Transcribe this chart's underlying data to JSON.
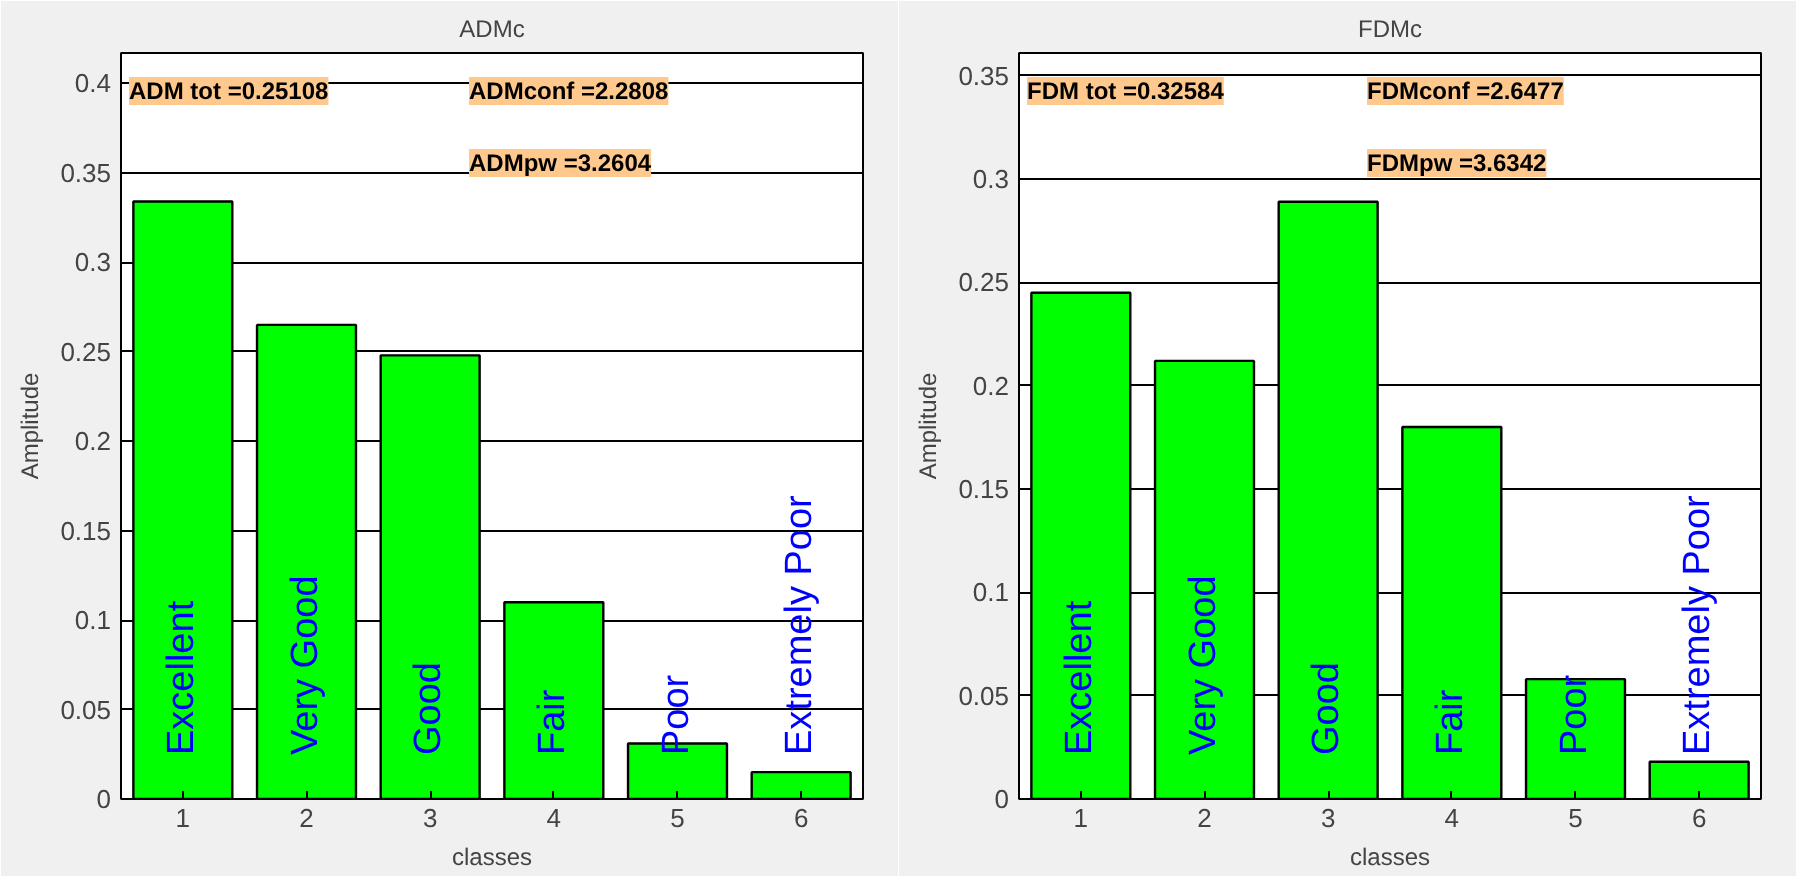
{
  "chart_data": [
    {
      "type": "bar",
      "title": "ADMc",
      "xlabel": "classes",
      "ylabel": "Amplitude",
      "x": [
        1,
        2,
        3,
        4,
        5,
        6
      ],
      "series": [
        {
          "color": "#00ff00",
          "values": [
            0.334,
            0.265,
            0.248,
            0.11,
            0.031,
            0.015
          ]
        }
      ],
      "xlim": [
        0.5,
        6.5
      ],
      "xticks": [
        1,
        2,
        3,
        4,
        5,
        6
      ],
      "ylim": [
        0,
        0.417
      ],
      "yticks": [
        0,
        0.05,
        0.1,
        0.15,
        0.2,
        0.25,
        0.3,
        0.35,
        0.4
      ],
      "grid": "y",
      "annotations": [
        "ADM tot =0.25108",
        "ADMconf =2.2808",
        "ADMpw =3.2604",
        "Excellent",
        "Very Good",
        "Good",
        "Fair",
        "Poor",
        "Extremely Poor"
      ]
    },
    {
      "type": "bar",
      "title": "FDMc",
      "xlabel": "classes",
      "ylabel": "Amplitude",
      "x": [
        1,
        2,
        3,
        4,
        5,
        6
      ],
      "series": [
        {
          "color": "#00ff00",
          "values": [
            0.245,
            0.212,
            0.289,
            0.18,
            0.058,
            0.018
          ]
        }
      ],
      "xlim": [
        0.5,
        6.5
      ],
      "xticks": [
        1,
        2,
        3,
        4,
        5,
        6
      ],
      "ylim": [
        0,
        0.361
      ],
      "yticks": [
        0,
        0.05,
        0.1,
        0.15,
        0.2,
        0.25,
        0.3,
        0.35
      ],
      "grid": "y",
      "annotations": [
        "FDM tot =0.32584",
        "FDMconf =2.6477",
        "FDMpw =3.6342",
        "Excellent",
        "Very Good",
        "Good",
        "Fair",
        "Poor",
        "Extremely Poor"
      ]
    }
  ]
}
